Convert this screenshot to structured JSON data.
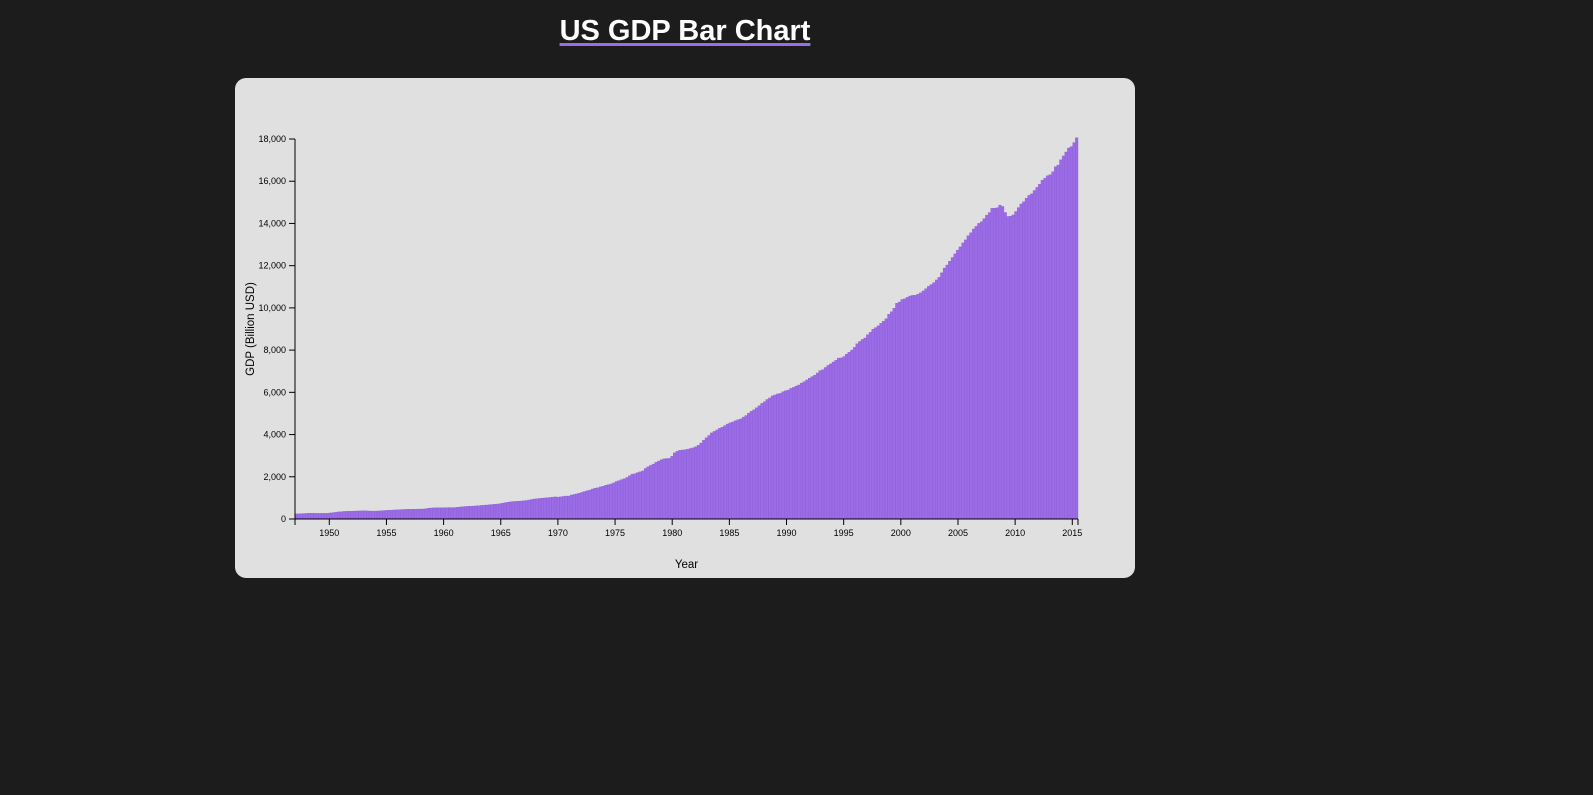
{
  "page": {
    "title": "US GDP Bar Chart",
    "background": "#1c1c1c",
    "card_background": "#e0e0e0",
    "accent": "#9b6ce6"
  },
  "chart_data": {
    "type": "bar",
    "title": "US GDP Bar Chart",
    "xlabel": "Year",
    "ylabel": "GDP (Billion USD)",
    "ylim": [
      0,
      18000
    ],
    "xlim": [
      1947,
      2015.5
    ],
    "yticks": [
      0,
      2000,
      4000,
      6000,
      8000,
      10000,
      12000,
      14000,
      16000,
      18000
    ],
    "ytick_labels": [
      "0",
      "2,000",
      "4,000",
      "6,000",
      "8,000",
      "10,000",
      "12,000",
      "14,000",
      "16,000",
      "18,000"
    ],
    "xticks": [
      1950,
      1955,
      1960,
      1965,
      1970,
      1975,
      1980,
      1985,
      1990,
      1995,
      2000,
      2005,
      2010,
      2015
    ],
    "xtick_labels": [
      "1950",
      "1955",
      "1960",
      "1965",
      "1970",
      "1975",
      "1980",
      "1985",
      "1990",
      "1995",
      "2000",
      "2005",
      "2010",
      "2015"
    ],
    "bar_color": "#9b6ce6",
    "frequency": "quarterly",
    "x_start": 1947.0,
    "x_step": 0.25,
    "values": [
      243,
      246,
      250,
      260,
      266,
      273,
      273,
      270,
      266,
      265,
      268,
      266,
      275,
      288,
      303,
      315,
      336,
      347,
      357,
      363,
      369,
      371,
      376,
      379,
      382,
      388,
      391,
      381,
      377,
      375,
      375,
      380,
      389,
      397,
      407,
      415,
      420,
      428,
      434,
      441,
      448,
      452,
      460,
      461,
      466,
      465,
      471,
      469,
      474,
      488,
      506,
      519,
      528,
      529,
      533,
      532,
      532,
      539,
      542,
      538,
      544,
      556,
      569,
      583,
      591,
      600,
      604,
      610,
      622,
      629,
      642,
      652,
      663,
      671,
      685,
      697,
      708,
      725,
      750,
      774,
      796,
      811,
      827,
      834,
      844,
      852,
      865,
      875,
      900,
      924,
      947,
      958,
      973,
      988,
      998,
      1006,
      1020,
      1037,
      1046,
      1036,
      1050,
      1067,
      1086,
      1088,
      1136,
      1163,
      1190,
      1223,
      1261,
      1301,
      1335,
      1371,
      1419,
      1457,
      1477,
      1520,
      1550,
      1597,
      1628,
      1660,
      1711,
      1777,
      1819,
      1867,
      1907,
      1967,
      2045,
      2127,
      2146,
      2196,
      2234,
      2278,
      2395,
      2472,
      2540,
      2602,
      2683,
      2743,
      2808,
      2848,
      2863,
      2870,
      2972,
      3131,
      3204,
      3255,
      3268,
      3280,
      3309,
      3340,
      3368,
      3420,
      3489,
      3598,
      3729,
      3847,
      3955,
      4078,
      4147,
      4218,
      4291,
      4347,
      4426,
      4497,
      4553,
      4597,
      4654,
      4700,
      4738,
      4827,
      4899,
      5014,
      5103,
      5180,
      5266,
      5365,
      5474,
      5556,
      5662,
      5737,
      5831,
      5876,
      5925,
      5949,
      6029,
      6073,
      6108,
      6187,
      6234,
      6299,
      6348,
      6438,
      6505,
      6587,
      6669,
      6746,
      6814,
      6916,
      7031,
      7069,
      7177,
      7273,
      7346,
      7435,
      7519,
      7622,
      7628,
      7694,
      7805,
      7897,
      8004,
      8130,
      8298,
      8410,
      8506,
      8574,
      8730,
      8845,
      8993,
      9063,
      9147,
      9269,
      9367,
      9484,
      9701,
      9814,
      9980,
      10218,
      10278,
      10399,
      10428,
      10500,
      10563,
      10593,
      10601,
      10651,
      10712,
      10802,
      10910,
      11017,
      11104,
      11197,
      11325,
      11444,
      11663,
      11886,
      12030,
      12209,
      12385,
      12559,
      12739,
      12890,
      13079,
      13220,
      13417,
      13560,
      13736,
      13858,
      14001,
      14076,
      14226,
      14391,
      14514,
      14714,
      14717,
      14744,
      14870,
      14805,
      14520,
      14329,
      14344,
      14401,
      14564,
      14751,
      14922,
      15031,
      15198,
      15329,
      15403,
      15560,
      15708,
      15855,
      16044,
      16148,
      16261,
      16307,
      16447,
      16684,
      16765,
      17014,
      17198,
      17384,
      17574,
      17642,
      17832,
      18062
    ]
  }
}
